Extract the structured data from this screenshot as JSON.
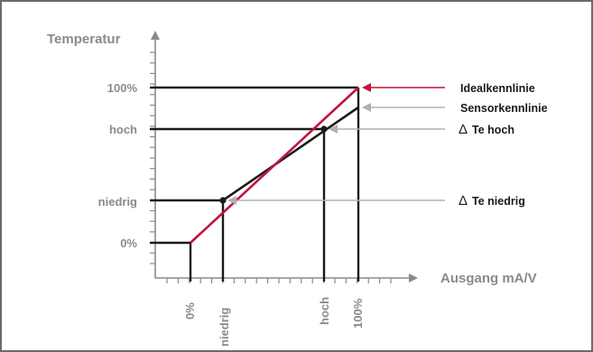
{
  "diagram": {
    "y_axis_title": "Temperatur",
    "x_axis_title": "Ausgang mA/V",
    "y_ticks": {
      "full": "100%",
      "high": "hoch",
      "low": "niedrig",
      "zero": "0%"
    },
    "x_ticks": {
      "zero": "0%",
      "low": "niedrig",
      "high": "hoch",
      "full": "100%"
    },
    "legend": {
      "ideal": "Idealkennlinie",
      "sensor": "Sensorkennlinie",
      "delta_high": "Te hoch",
      "delta_low": "Te niedrig"
    },
    "delta_symbol": "Δ",
    "colors": {
      "ideal_line": "#c0143c",
      "sensor_line": "#1a1a1a",
      "axis": "#8a8a8a",
      "label_text": "#8a8a8a",
      "border": "#6b6b6b"
    }
  }
}
